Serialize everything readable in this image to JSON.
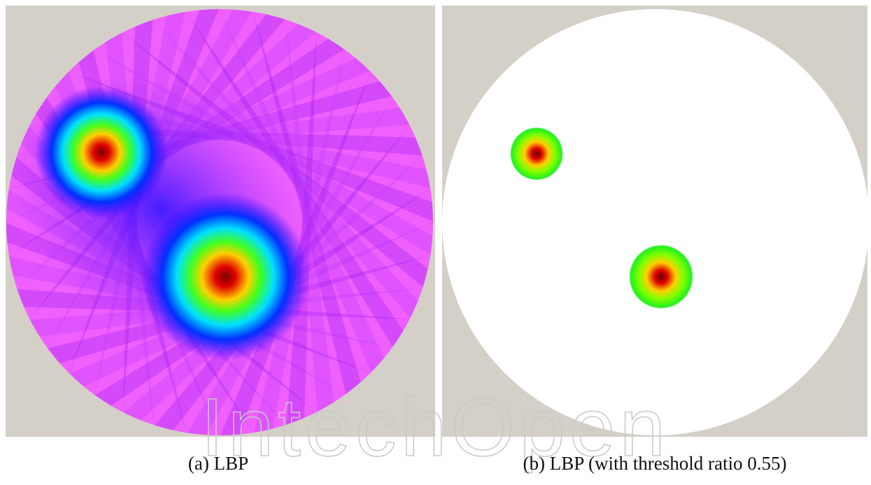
{
  "figure": {
    "panels": [
      {
        "caption": "(a) LBP"
      },
      {
        "caption": "(b) LBP (with threshold ratio 0.55)"
      }
    ],
    "watermark": "IntechOpen"
  }
}
